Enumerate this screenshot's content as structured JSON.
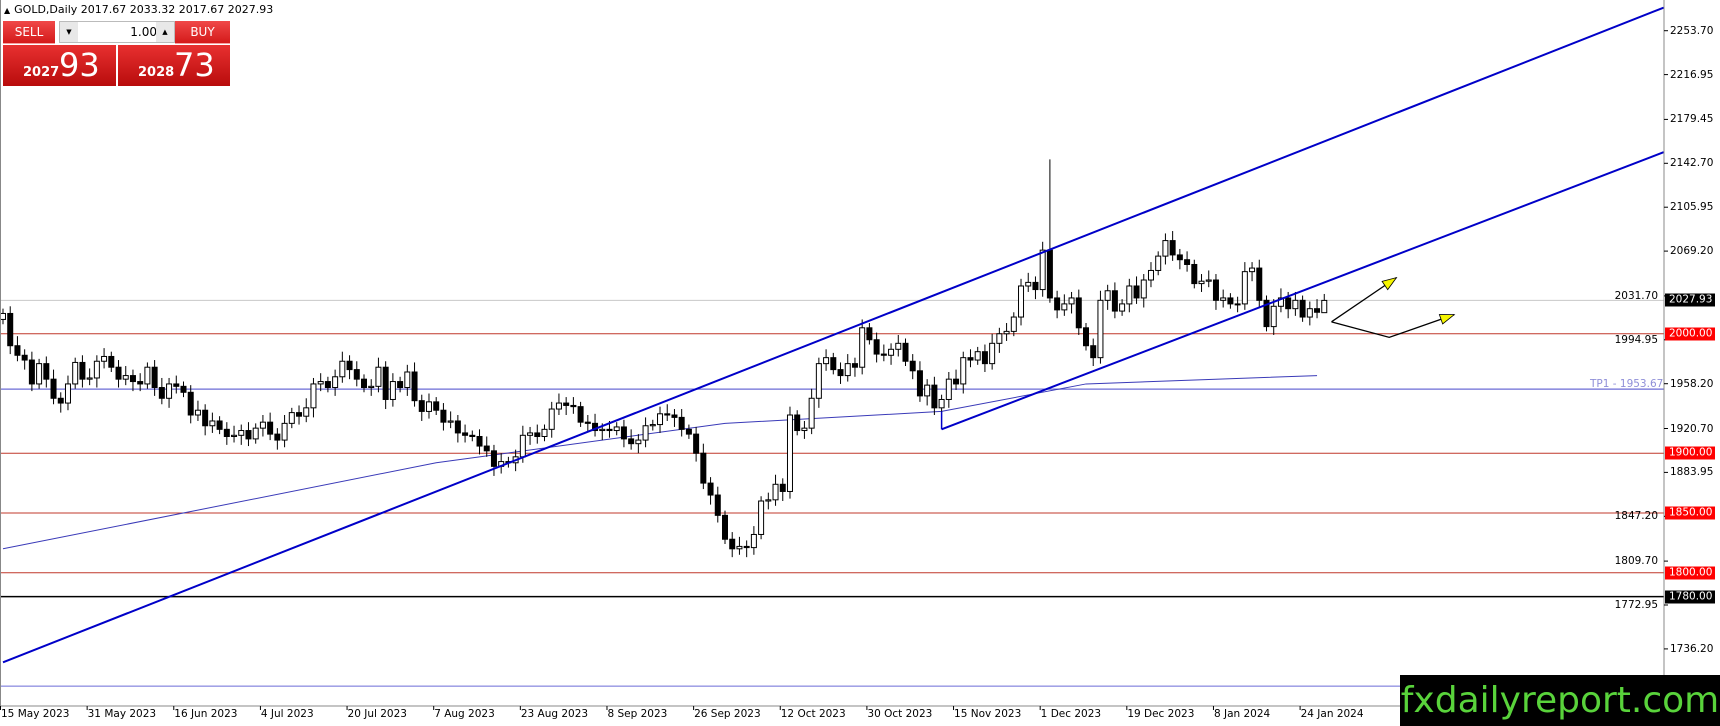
{
  "header": {
    "symbol_line": "GOLD,Daily  2017.67 2033.32 2017.67 2027.93"
  },
  "trade_panel": {
    "sell_label": "SELL",
    "buy_label": "BUY",
    "lot_value": "1.00",
    "sell_price_small": "2027",
    "sell_price_big": "93",
    "buy_price_small": "2028",
    "buy_price_big": "73"
  },
  "y_axis": {
    "labels": [
      "2253.70",
      "2216.95",
      "2179.45",
      "2142.70",
      "2105.95",
      "2069.20",
      "2031.70",
      "1994.95",
      "1958.20",
      "1920.70",
      "1883.95",
      "1847.20",
      "1809.70",
      "1772.95",
      "1736.20"
    ]
  },
  "x_axis": {
    "labels": [
      "15 May 2023",
      "31 May 2023",
      "16 Jun 2023",
      "4 Jul 2023",
      "20 Jul 2023",
      "7 Aug 2023",
      "23 Aug 2023",
      "8 Sep 2023",
      "26 Sep 2023",
      "12 Oct 2023",
      "30 Oct 2023",
      "15 Nov 2023",
      "1 Dec 2023",
      "19 Dec 2023",
      "8 Jan 2024",
      "24 Jan 2024"
    ]
  },
  "levels": [
    {
      "label": "2027.93",
      "price": 2027.93,
      "color": "#c8c8c8",
      "badge": "#000000"
    },
    {
      "label": "2000.00",
      "price": 2000,
      "color": "#c0392b",
      "badge": "#ff0000"
    },
    {
      "label": "1900.00",
      "price": 1900,
      "color": "#c0392b",
      "badge": "#ff0000"
    },
    {
      "label": "1850.00",
      "price": 1850,
      "color": "#c0392b",
      "badge": "#ff0000"
    },
    {
      "label": "1800.00",
      "price": 1800,
      "color": "#c0392b",
      "badge": "#ff0000"
    },
    {
      "label": "1780.00",
      "price": 1780,
      "color": "#000000",
      "badge": "#000000"
    }
  ],
  "tp1": {
    "label": "TP1 - 1953.67",
    "price": 1953.67,
    "color": "#6b6bd6"
  },
  "lower_line_price": 1705,
  "colors": {
    "trendline": "#0000c8",
    "ma": "#3a3ab8",
    "arrow": "#f5f500",
    "bull": "#ffffff",
    "bear": "#000000",
    "watermark_text": "#59d33b"
  },
  "chart_data": {
    "type": "candlestick",
    "symbol": "GOLD",
    "timeframe": "Daily",
    "ylim": [
      1700,
      2275
    ],
    "closes": [
      2017,
      1990,
      1982,
      1978,
      1958,
      1975,
      1962,
      1946,
      1942,
      1958,
      1976,
      1962,
      1963,
      1977,
      1981,
      1972,
      1962,
      1965,
      1960,
      1958,
      1972,
      1955,
      1946,
      1958,
      1956,
      1951,
      1932,
      1936,
      1923,
      1927,
      1920,
      1914,
      1915,
      1919,
      1912,
      1921,
      1926,
      1916,
      1911,
      1925,
      1934,
      1931,
      1938,
      1958,
      1960,
      1955,
      1964,
      1977,
      1970,
      1962,
      1955,
      1956,
      1972,
      1945,
      1960,
      1955,
      1968,
      1944,
      1935,
      1943,
      1936,
      1926,
      1927,
      1917,
      1915,
      1914,
      1906,
      1902,
      1889,
      1893,
      1892,
      1897,
      1915,
      1917,
      1914,
      1920,
      1937,
      1942,
      1940,
      1939,
      1926,
      1925,
      1919,
      1920,
      1919,
      1922,
      1912,
      1908,
      1911,
      1923,
      1924,
      1933,
      1932,
      1930,
      1920,
      1916,
      1900,
      1875,
      1865,
      1848,
      1828,
      1820,
      1822,
      1821,
      1832,
      1860,
      1861,
      1874,
      1868,
      1932,
      1919,
      1921,
      1946,
      1975,
      1980,
      1970,
      1965,
      1975,
      1972,
      2005,
      1995,
      1983,
      1982,
      1987,
      1992,
      1977,
      1969,
      1948,
      1957,
      1938,
      1945,
      1962,
      1958,
      1980,
      1978,
      1985,
      1975,
      1992,
      2000,
      2002,
      2014,
      2040,
      2043,
      2037,
      2070,
      2030,
      2020,
      2025,
      2030,
      2005,
      1990,
      1980,
      2028,
      2036,
      2019,
      2025,
      2040,
      2030,
      2045,
      2053,
      2065,
      2078,
      2066,
      2062,
      2058,
      2042,
      2044,
      2045,
      2028,
      2030,
      2025,
      2025,
      2052,
      2055,
      2028,
      2006,
      2023,
      2030,
      2021,
      2028,
      2014,
      2021,
      2018,
      2027.93
    ],
    "last_bar": {
      "open": 2017.67,
      "high": 2033.32,
      "low": 2017.67,
      "close": 2027.93
    },
    "notable_highs": [
      {
        "bar": 145,
        "high": 2146
      }
    ],
    "ma_points": [
      [
        0,
        1820
      ],
      [
        60,
        1892
      ],
      [
        100,
        1925
      ],
      [
        130,
        1935
      ],
      [
        150,
        1958
      ],
      [
        182,
        1965
      ]
    ],
    "trendlines": [
      {
        "from": [
          0,
          1725
        ],
        "to": [
          230,
          2273
        ]
      },
      {
        "from": [
          130,
          1920
        ],
        "to": [
          230,
          2152
        ]
      }
    ],
    "arrows": [
      [
        [
          184,
          2010
        ],
        [
          193,
          2047
        ]
      ],
      [
        [
          184,
          2010
        ],
        [
          192,
          1997
        ],
        [
          201,
          2016
        ]
      ]
    ]
  },
  "watermark": "fxdailyreport.com"
}
